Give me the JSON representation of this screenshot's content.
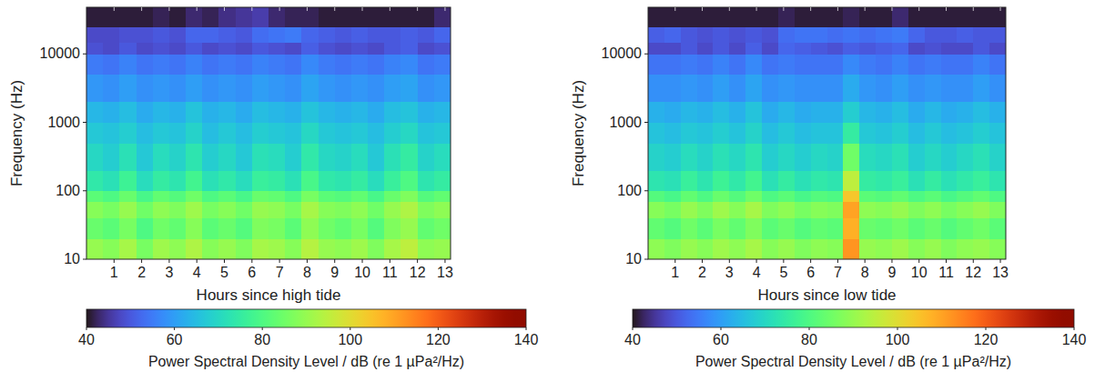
{
  "chart_data": [
    {
      "type": "heatmap",
      "x_label": "Hours since high tide",
      "y_label": "Frequency (Hz)",
      "xlim": [
        0,
        13.2
      ],
      "xticks": [
        1,
        2,
        3,
        4,
        5,
        6,
        7,
        8,
        9,
        10,
        11,
        12,
        13
      ],
      "ylim": [
        10,
        48000
      ],
      "yticks": [
        10,
        100,
        1000,
        10000
      ],
      "log": "y",
      "x_edges": [
        0,
        0.6,
        1.2,
        1.8,
        2.4,
        3.0,
        3.6,
        4.2,
        4.8,
        5.4,
        6.0,
        6.6,
        7.2,
        7.8,
        8.4,
        9.0,
        9.6,
        10.2,
        10.8,
        11.4,
        12.0,
        12.6,
        13.2
      ],
      "y_edges": [
        10,
        20,
        40,
        70,
        100,
        200,
        500,
        1000,
        2000,
        5000,
        10000,
        15000,
        25000,
        48000
      ],
      "cells": [
        [
          90,
          88,
          92,
          86,
          91,
          89,
          93,
          88,
          90,
          87,
          92,
          91,
          88,
          94,
          90,
          89,
          91,
          87,
          92,
          95,
          89,
          90
        ],
        [
          84,
          82,
          86,
          80,
          85,
          83,
          88,
          82,
          84,
          81,
          87,
          86,
          82,
          89,
          85,
          83,
          86,
          81,
          87,
          90,
          83,
          85
        ],
        [
          88,
          86,
          90,
          85,
          89,
          87,
          91,
          86,
          88,
          85,
          90,
          89,
          86,
          92,
          88,
          87,
          89,
          85,
          90,
          93,
          87,
          89
        ],
        [
          82,
          80,
          84,
          79,
          83,
          81,
          85,
          80,
          82,
          79,
          84,
          83,
          80,
          86,
          82,
          81,
          83,
          79,
          84,
          87,
          81,
          83
        ],
        [
          74,
          72,
          77,
          71,
          75,
          73,
          78,
          72,
          74,
          71,
          76,
          75,
          72,
          79,
          74,
          73,
          75,
          71,
          76,
          80,
          73,
          75
        ],
        [
          70,
          68,
          72,
          67,
          71,
          69,
          73,
          68,
          70,
          67,
          72,
          71,
          68,
          74,
          70,
          69,
          71,
          67,
          72,
          75,
          69,
          71
        ],
        [
          67,
          66,
          68,
          65,
          67,
          66,
          69,
          65,
          67,
          65,
          68,
          67,
          66,
          70,
          67,
          66,
          67,
          65,
          68,
          70,
          66,
          67
        ],
        [
          64,
          63,
          65,
          62,
          64,
          63,
          66,
          63,
          64,
          62,
          65,
          64,
          63,
          66,
          64,
          63,
          64,
          62,
          65,
          66,
          63,
          64
        ],
        [
          59,
          58,
          60,
          58,
          59,
          58,
          60,
          58,
          59,
          58,
          60,
          59,
          58,
          61,
          59,
          58,
          59,
          58,
          60,
          61,
          58,
          59
        ],
        [
          55,
          54,
          56,
          54,
          55,
          54,
          56,
          54,
          55,
          54,
          56,
          55,
          54,
          57,
          55,
          54,
          55,
          54,
          56,
          57,
          54,
          55
        ],
        [
          49,
          48,
          50,
          48,
          49,
          48,
          50,
          48,
          49,
          48,
          50,
          49,
          48,
          51,
          49,
          48,
          49,
          48,
          50,
          51,
          48,
          49
        ],
        [
          48,
          48,
          49,
          49,
          50,
          49,
          52,
          52,
          51,
          50,
          53,
          54,
          55,
          52,
          51,
          50,
          51,
          50,
          50,
          51,
          50,
          52
        ],
        [
          41,
          41,
          41,
          41,
          42,
          41,
          43,
          42,
          44,
          45,
          46,
          43,
          42,
          42,
          41,
          41,
          41,
          41,
          41,
          41,
          41,
          43
        ]
      ],
      "colorbar": {
        "label": "Power Spectral Density Level / dB (re 1 µPa²/Hz)",
        "range": [
          40,
          140
        ],
        "ticks": [
          40,
          60,
          80,
          100,
          120,
          140
        ]
      }
    },
    {
      "type": "heatmap",
      "x_label": "Hours since low tide",
      "y_label": "Frequency (Hz)",
      "xlim": [
        0,
        13.2
      ],
      "xticks": [
        1,
        2,
        3,
        4,
        5,
        6,
        7,
        8,
        9,
        10,
        11,
        12,
        13
      ],
      "ylim": [
        10,
        48000
      ],
      "yticks": [
        10,
        100,
        1000,
        10000
      ],
      "log": "y",
      "x_edges": [
        0,
        0.6,
        1.2,
        1.8,
        2.4,
        3.0,
        3.6,
        4.2,
        4.8,
        5.4,
        6.0,
        6.6,
        7.2,
        7.8,
        8.4,
        9.0,
        9.6,
        10.2,
        10.8,
        11.4,
        12.0,
        12.6,
        13.2
      ],
      "y_edges": [
        10,
        20,
        40,
        70,
        100,
        200,
        500,
        1000,
        2000,
        5000,
        10000,
        15000,
        25000,
        48000
      ],
      "cells": [
        [
          89,
          87,
          90,
          88,
          91,
          89,
          92,
          88,
          90,
          87,
          89,
          88,
          112,
          90,
          89,
          91,
          88,
          90,
          87,
          89,
          90,
          88
        ],
        [
          83,
          81,
          85,
          82,
          86,
          83,
          87,
          82,
          84,
          81,
          83,
          82,
          108,
          84,
          83,
          85,
          82,
          84,
          81,
          83,
          85,
          82
        ],
        [
          88,
          86,
          90,
          87,
          91,
          88,
          92,
          87,
          89,
          86,
          88,
          87,
          110,
          89,
          88,
          90,
          87,
          89,
          86,
          88,
          90,
          87
        ],
        [
          81,
          79,
          83,
          80,
          84,
          81,
          85,
          80,
          82,
          79,
          81,
          80,
          104,
          82,
          81,
          83,
          80,
          82,
          79,
          81,
          83,
          80
        ],
        [
          73,
          72,
          76,
          73,
          77,
          74,
          78,
          72,
          75,
          72,
          74,
          73,
          95,
          75,
          74,
          76,
          72,
          75,
          72,
          74,
          76,
          73
        ],
        [
          69,
          68,
          71,
          69,
          72,
          70,
          73,
          68,
          70,
          68,
          70,
          69,
          85,
          71,
          70,
          72,
          68,
          70,
          68,
          70,
          72,
          69
        ],
        [
          66,
          65,
          67,
          66,
          68,
          66,
          69,
          65,
          67,
          65,
          66,
          66,
          75,
          67,
          66,
          68,
          65,
          67,
          65,
          66,
          68,
          66
        ],
        [
          63,
          62,
          64,
          63,
          65,
          63,
          66,
          62,
          64,
          62,
          63,
          63,
          68,
          64,
          63,
          65,
          62,
          64,
          62,
          63,
          65,
          63
        ],
        [
          58,
          58,
          59,
          58,
          60,
          58,
          61,
          58,
          59,
          58,
          58,
          58,
          62,
          59,
          58,
          60,
          58,
          59,
          58,
          58,
          60,
          58
        ],
        [
          54,
          54,
          55,
          54,
          56,
          54,
          57,
          54,
          55,
          54,
          54,
          54,
          57,
          55,
          54,
          56,
          54,
          55,
          54,
          54,
          56,
          54
        ],
        [
          48,
          48,
          50,
          48,
          50,
          48,
          51,
          48,
          52,
          51,
          50,
          49,
          51,
          50,
          51,
          52,
          48,
          49,
          48,
          48,
          50,
          48
        ],
        [
          51,
          52,
          50,
          49,
          50,
          49,
          50,
          49,
          53,
          54,
          54,
          53,
          54,
          53,
          54,
          55,
          52,
          50,
          50,
          51,
          50,
          50
        ],
        [
          41,
          41,
          41,
          41,
          41,
          41,
          41,
          41,
          42,
          41,
          41,
          41,
          42,
          41,
          41,
          43,
          41,
          41,
          41,
          41,
          41,
          41
        ]
      ],
      "colorbar": {
        "label": "Power Spectral Density Level / dB (re 1 µPa²/Hz)",
        "range": [
          40,
          140
        ],
        "ticks": [
          40,
          60,
          80,
          100,
          120,
          140
        ]
      }
    }
  ]
}
